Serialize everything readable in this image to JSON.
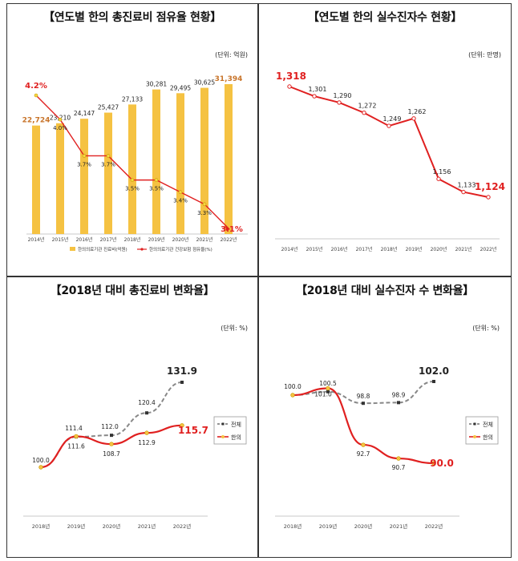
{
  "chart_data": [
    {
      "type": "bar",
      "title": "【연도별 한의 총진료비 점유율 현황】",
      "unit": "(단위: 억원)",
      "categories": [
        "2014년",
        "2015년",
        "2016년",
        "2017년",
        "2018년",
        "2019년",
        "2020년",
        "2021년",
        "2022년"
      ],
      "series": [
        {
          "name": "한의의료기관 진료비(억원)",
          "type": "bar",
          "values": [
            22724,
            23210,
            24147,
            25427,
            27133,
            30281,
            29495,
            30625,
            31394
          ],
          "labels": [
            "22,724",
            "23,210",
            "24,147",
            "25,427",
            "27,133",
            "30,281",
            "29,495",
            "30,625",
            "31,394"
          ]
        },
        {
          "name": "한의의료기관 건강보험 점유율(%)",
          "type": "line",
          "values": [
            4.2,
            4.0,
            3.7,
            3.7,
            3.5,
            3.5,
            3.4,
            3.3,
            3.1
          ],
          "labels": [
            "4.2%",
            "4.0%",
            "3.7%",
            "3.7%",
            "3.5%",
            "3.5%",
            "3.4%",
            "3.3%",
            "3.1%"
          ]
        }
      ],
      "colors": {
        "bar": "#f5c242",
        "line": "#e02020",
        "highlight_bar_label": "#c8742a"
      }
    },
    {
      "type": "line",
      "title": "【연도별 한의 실수진자수 현황】",
      "unit": "(단위: 만명)",
      "categories": [
        "2014년",
        "2015년",
        "2016년",
        "2017년",
        "2018년",
        "2019년",
        "2020년",
        "2021년",
        "2022년"
      ],
      "series": [
        {
          "name": "실수진자수",
          "values": [
            1318,
            1301,
            1290,
            1272,
            1249,
            1262,
            1156,
            1133,
            1124
          ],
          "labels": [
            "1,318",
            "1,301",
            "1,290",
            "1,272",
            "1,249",
            "1,262",
            "1,156",
            "1,133",
            "1,124"
          ]
        }
      ],
      "colors": {
        "line": "#e02020"
      }
    },
    {
      "type": "line",
      "title": "【2018년 대비 총진료비 변화율】",
      "unit": "(단위: %)",
      "categories": [
        "2018년",
        "2019년",
        "2020년",
        "2021년",
        "2022년"
      ],
      "series": [
        {
          "name": "전체",
          "values": [
            100.0,
            111.4,
            112.0,
            120.4,
            131.9
          ],
          "labels": [
            "100.0",
            "111.4",
            "112.0",
            "120.4",
            "131.9"
          ]
        },
        {
          "name": "한의",
          "values": [
            100.0,
            111.6,
            108.7,
            112.9,
            115.7
          ],
          "labels": [
            "100.0",
            "111.6",
            "108.7",
            "112.9",
            "115.7"
          ]
        }
      ],
      "colors": {
        "total": "#888888",
        "kmed": "#e02020"
      }
    },
    {
      "type": "line",
      "title": "【2018년 대비 실수진자 수 변화율】",
      "unit": "(단위: %)",
      "categories": [
        "2018년",
        "2019년",
        "2020년",
        "2021년",
        "2022년"
      ],
      "series": [
        {
          "name": "전체",
          "values": [
            100.0,
            100.5,
            98.8,
            98.9,
            102.0
          ],
          "labels": [
            "100.0",
            "100.5",
            "98.8",
            "98.9",
            "102.0"
          ]
        },
        {
          "name": "한의",
          "values": [
            100.0,
            101.0,
            92.7,
            90.7,
            90.0
          ],
          "labels": [
            "100.0",
            "101.0",
            "92.7",
            "90.7",
            "90.0"
          ]
        }
      ],
      "colors": {
        "total": "#888888",
        "kmed": "#e02020"
      }
    }
  ]
}
